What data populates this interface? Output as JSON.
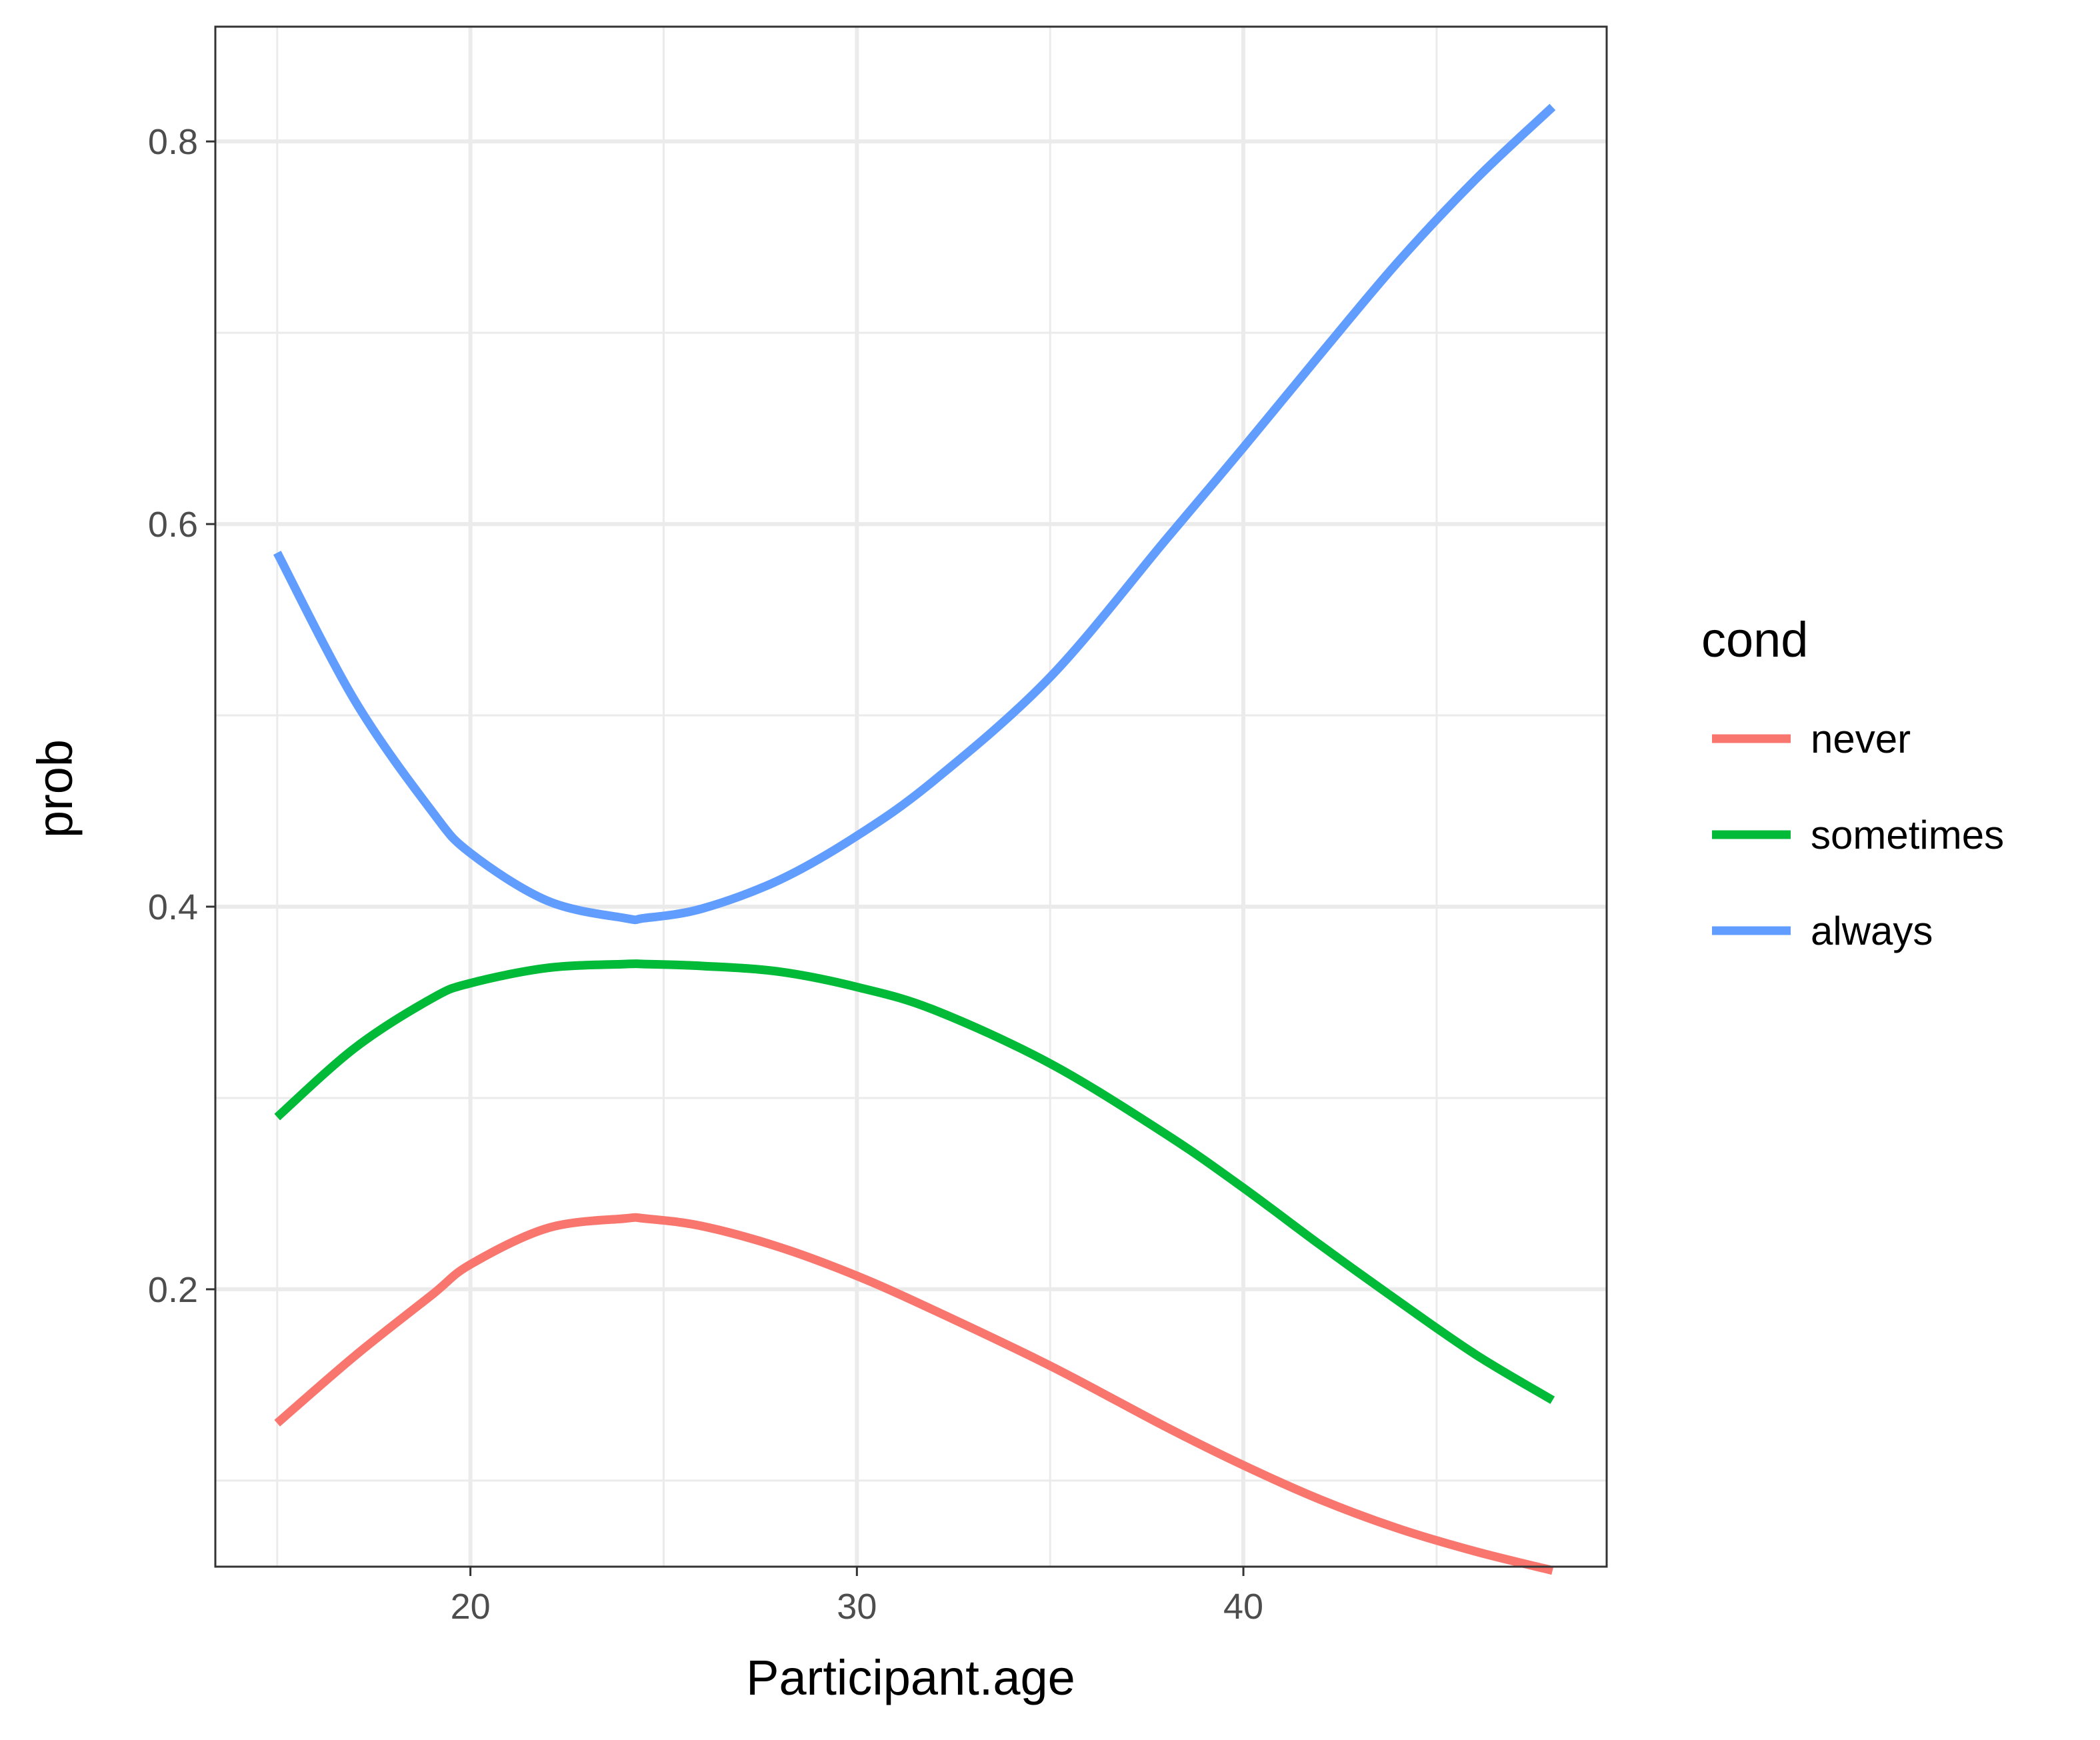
{
  "chart_data": {
    "type": "line",
    "title": "",
    "xlabel": "Participant.age",
    "ylabel": "prob",
    "xlim": [
      13.4,
      49.4
    ],
    "ylim": [
      0.055,
      0.86
    ],
    "x_ticks": [
      20,
      30,
      40
    ],
    "x_tick_labels": [
      "20",
      "30",
      "40"
    ],
    "y_ticks": [
      0.2,
      0.4,
      0.6,
      0.8
    ],
    "y_tick_labels": [
      "0.2",
      "0.4",
      "0.6",
      "0.8"
    ],
    "grid": true,
    "legend_title": "cond",
    "legend_position": "right",
    "x": [
      15,
      17,
      19,
      20,
      22,
      24,
      24.5,
      26,
      28,
      30,
      32,
      35,
      38,
      40,
      42,
      44,
      46,
      48
    ],
    "series": [
      {
        "name": "never",
        "color": "#F8766D",
        "values": [
          0.13,
          0.165,
          0.197,
          0.213,
          0.232,
          0.237,
          0.237,
          0.233,
          0.222,
          0.207,
          0.189,
          0.16,
          0.128,
          0.108,
          0.09,
          0.075,
          0.063,
          0.053
        ]
      },
      {
        "name": "sometimes",
        "color": "#00BA38",
        "values": [
          0.29,
          0.326,
          0.352,
          0.36,
          0.368,
          0.37,
          0.37,
          0.369,
          0.366,
          0.358,
          0.346,
          0.318,
          0.281,
          0.253,
          0.223,
          0.194,
          0.166,
          0.142
        ]
      },
      {
        "name": "always",
        "color": "#619CFF",
        "values": [
          0.585,
          0.508,
          0.45,
          0.428,
          0.403,
          0.394,
          0.394,
          0.399,
          0.414,
          0.437,
          0.466,
          0.52,
          0.592,
          0.64,
          0.689,
          0.737,
          0.78,
          0.818
        ]
      }
    ]
  }
}
